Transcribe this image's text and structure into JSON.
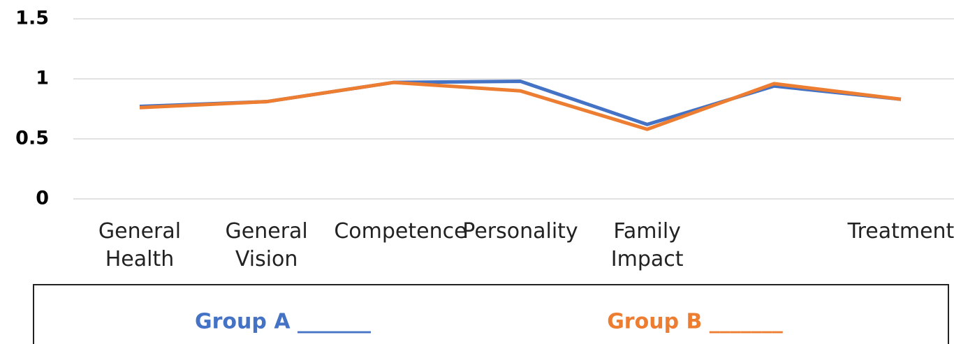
{
  "chart_data": {
    "type": "line",
    "categories": [
      "General Health",
      "General Vision",
      "Competence",
      "Personality",
      "Family Impact",
      null,
      "Treatment"
    ],
    "series": [
      {
        "name": "Group A _______",
        "color": "#4472c4",
        "values": [
          0.77,
          0.81,
          0.97,
          0.98,
          0.62,
          0.94,
          0.83
        ]
      },
      {
        "name": "Group B _______",
        "color": "#ed7d31",
        "values": [
          0.76,
          0.81,
          0.97,
          0.9,
          0.58,
          0.96,
          0.83
        ]
      }
    ],
    "ylim": [
      0,
      1.5
    ],
    "yticks": [
      0,
      0.5,
      1,
      1.5
    ],
    "grid": true
  }
}
